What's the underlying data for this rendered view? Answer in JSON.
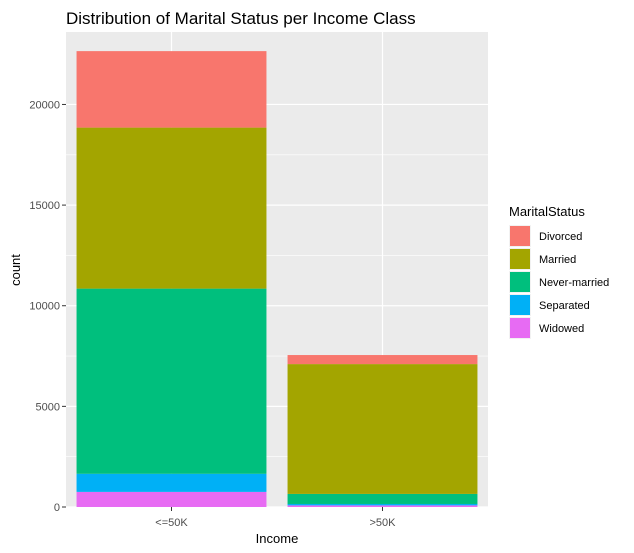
{
  "chart_data": {
    "type": "bar",
    "stacked": true,
    "title": "Distribution of Marital Status per Income Class",
    "xlabel": "Income",
    "ylabel": "count",
    "categories": [
      "<=50K",
      ">50K"
    ],
    "ylim": [
      0,
      23600
    ],
    "yticks": [
      0,
      5000,
      10000,
      15000,
      20000
    ],
    "ytick_labels": [
      "0",
      "5000",
      "10000",
      "15000",
      "20000"
    ],
    "grid": true,
    "legend": {
      "title": "MaritalStatus",
      "position": "right"
    },
    "series": [
      {
        "name": "Divorced",
        "color": "#F8766D",
        "values": [
          3800,
          450
        ]
      },
      {
        "name": "Married",
        "color": "#A3A500",
        "values": [
          8000,
          6450
        ]
      },
      {
        "name": "Never-married",
        "color": "#00BF7D",
        "values": [
          9200,
          500
        ]
      },
      {
        "name": "Separated",
        "color": "#00B0F6",
        "values": [
          900,
          70
        ]
      },
      {
        "name": "Widowed",
        "color": "#E76BF3",
        "values": [
          750,
          80
        ]
      }
    ],
    "stack_order_bottom_to_top": [
      "Widowed",
      "Separated",
      "Never-married",
      "Married",
      "Divorced"
    ],
    "panel_background": "#EBEBEB",
    "gridline_color": "#FFFFFF"
  }
}
